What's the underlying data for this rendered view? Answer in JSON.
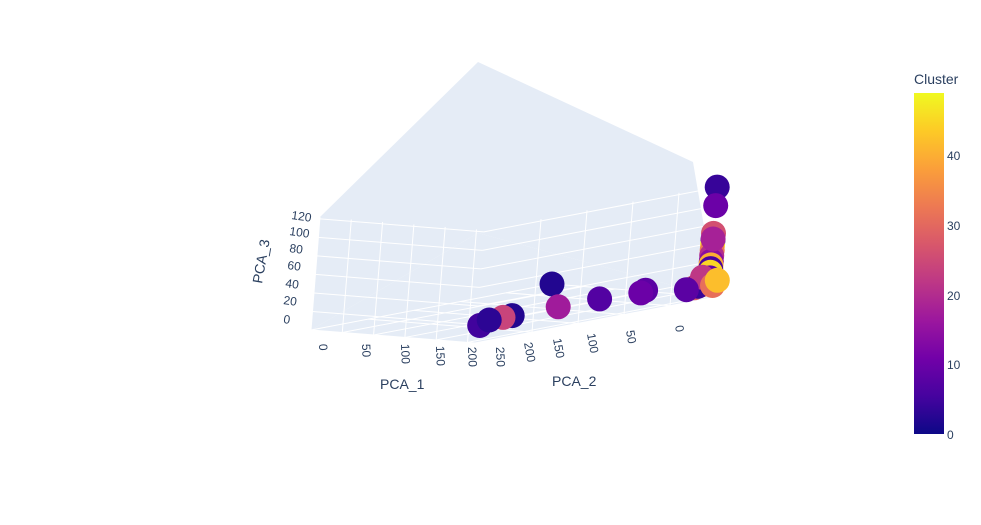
{
  "chart_data": {
    "type": "scatter3d",
    "axes": {
      "x": {
        "title": "PCA_1",
        "ticks": [
          "0",
          "50",
          "100",
          "150",
          "200",
          "250"
        ]
      },
      "y": {
        "title": "PCA_2",
        "ticks": [
          "200",
          "150",
          "100",
          "50",
          "0"
        ]
      },
      "z": {
        "title": "PCA_3",
        "ticks": [
          "0",
          "20",
          "40",
          "60",
          "80",
          "100",
          "120"
        ]
      }
    },
    "colorbar": {
      "title": "Cluster",
      "ticks": [
        "0",
        "10",
        "20",
        "30",
        "40"
      ],
      "range": [
        0,
        49
      ],
      "colorscale": [
        "#0d0887",
        "#46039f",
        "#7201a8",
        "#9c179e",
        "#bd3786",
        "#d8576b",
        "#ed7953",
        "#fb9f3a",
        "#fdca26",
        "#f0f921"
      ]
    },
    "grid": true,
    "points": [
      {
        "pca1": 0,
        "pca2": 0,
        "pca3": 0,
        "cluster": 2
      },
      {
        "pca1": 250,
        "pca2": 0,
        "pca3": 118,
        "cluster": 4
      },
      {
        "pca1": 250,
        "pca2": 0,
        "pca3": 98,
        "cluster": 10
      },
      {
        "pca1": 250,
        "pca2": 0,
        "pca3": 68,
        "cluster": 26
      },
      {
        "pca1": 250,
        "pca2": 0,
        "pca3": 60,
        "cluster": 3
      },
      {
        "pca1": 250,
        "pca2": 0,
        "pca3": 56,
        "cluster": 46
      },
      {
        "pca1": 250,
        "pca2": 0,
        "pca3": 50,
        "cluster": 33
      },
      {
        "pca1": 250,
        "pca2": 0,
        "pca3": 44,
        "cluster": 20
      },
      {
        "pca1": 250,
        "pca2": 0,
        "pca3": 38,
        "cluster": 14
      },
      {
        "pca1": 250,
        "pca2": 0,
        "pca3": 34,
        "cluster": 40
      },
      {
        "pca1": 250,
        "pca2": 0,
        "pca3": 30,
        "cluster": 6
      },
      {
        "pca1": 250,
        "pca2": 0,
        "pca3": 26,
        "cluster": 45
      },
      {
        "pca1": 250,
        "pca2": 0,
        "pca3": 20,
        "cluster": 9
      },
      {
        "pca1": 250,
        "pca2": 0,
        "pca3": 15,
        "cluster": 39
      },
      {
        "pca1": 238,
        "pca2": 0,
        "pca3": 12,
        "cluster": 35
      },
      {
        "pca1": 226,
        "pca2": 0,
        "pca3": 8,
        "cluster": 28
      },
      {
        "pca1": 232,
        "pca2": 0,
        "pca3": 10,
        "cluster": 4
      },
      {
        "pca1": 238,
        "pca2": 0,
        "pca3": 20,
        "cluster": 22
      },
      {
        "pca1": 255,
        "pca2": 0,
        "pca3": 12,
        "cluster": 31
      },
      {
        "pca1": 262,
        "pca2": 0,
        "pca3": 18,
        "cluster": 42
      },
      {
        "pca1": 250,
        "pca2": 25,
        "pca3": 12,
        "cluster": 8
      },
      {
        "pca1": 250,
        "pca2": 0,
        "pca3": 62,
        "cluster": 18
      },
      {
        "pca1": 250,
        "pca2": 70,
        "pca3": 20,
        "cluster": 8
      },
      {
        "pca1": 250,
        "pca2": 75,
        "pca3": 18,
        "cluster": 10
      },
      {
        "pca1": 250,
        "pca2": 120,
        "pca3": 20,
        "cluster": 7
      },
      {
        "pca1": 250,
        "pca2": 165,
        "pca3": 20,
        "cluster": 17
      },
      {
        "pca1": 250,
        "pca2": 215,
        "pca3": 20,
        "cluster": 2
      },
      {
        "pca1": 250,
        "pca2": 225,
        "pca3": 20,
        "cluster": 24
      },
      {
        "pca1": 250,
        "pca2": 250,
        "pca3": 16,
        "cluster": 5
      },
      {
        "pca1": 250,
        "pca2": 240,
        "pca3": 20,
        "cluster": 3
      }
    ]
  }
}
